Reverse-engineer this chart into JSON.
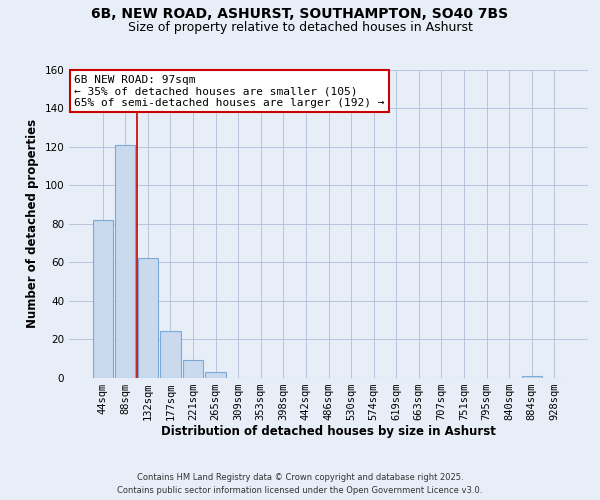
{
  "title_line1": "6B, NEW ROAD, ASHURST, SOUTHAMPTON, SO40 7BS",
  "title_line2": "Size of property relative to detached houses in Ashurst",
  "xlabel": "Distribution of detached houses by size in Ashurst",
  "ylabel": "Number of detached properties",
  "bar_labels": [
    "44sqm",
    "88sqm",
    "132sqm",
    "177sqm",
    "221sqm",
    "265sqm",
    "309sqm",
    "353sqm",
    "398sqm",
    "442sqm",
    "486sqm",
    "530sqm",
    "574sqm",
    "619sqm",
    "663sqm",
    "707sqm",
    "751sqm",
    "795sqm",
    "840sqm",
    "884sqm",
    "928sqm"
  ],
  "bar_values": [
    82,
    121,
    62,
    24,
    9,
    3,
    0,
    0,
    0,
    0,
    0,
    0,
    0,
    0,
    0,
    0,
    0,
    0,
    0,
    1,
    0
  ],
  "bar_fill_color": "#c9d9ee",
  "bar_edge_color": "#7daad4",
  "vline_x_index": 1.5,
  "vline_color": "#cc0000",
  "annotation_text_line1": "6B NEW ROAD: 97sqm",
  "annotation_text_line2": "← 35% of detached houses are smaller (105)",
  "annotation_text_line3": "65% of semi-detached houses are larger (192) →",
  "ylim": [
    0,
    160
  ],
  "yticks": [
    0,
    20,
    40,
    60,
    80,
    100,
    120,
    140,
    160
  ],
  "figure_bg": "#e8eef7",
  "plot_bg": "#e8eef7",
  "grid_color": "#b0bfd8",
  "footer_line1": "Contains HM Land Registry data © Crown copyright and database right 2025.",
  "footer_line2": "Contains public sector information licensed under the Open Government Licence v3.0.",
  "title_fontsize": 10,
  "subtitle_fontsize": 9,
  "axis_label_fontsize": 8.5,
  "tick_fontsize": 7.5,
  "annotation_fontsize": 8,
  "footer_fontsize": 6
}
